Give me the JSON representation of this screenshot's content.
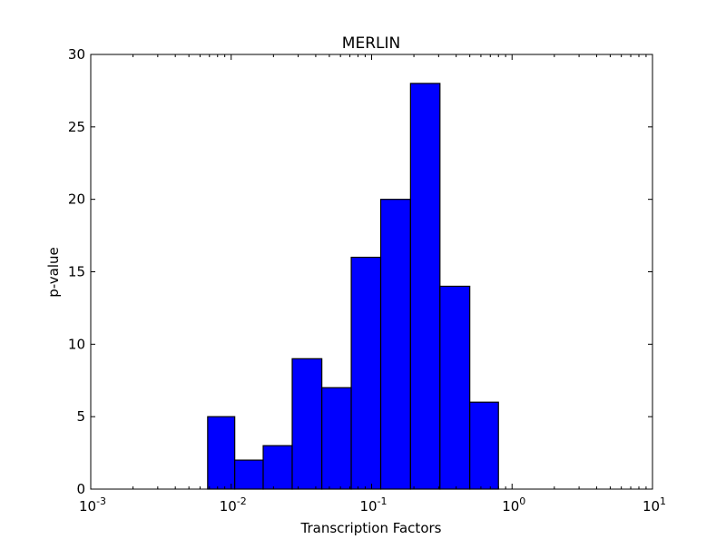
{
  "chart_data": {
    "type": "bar",
    "title": "MERLIN",
    "xlabel": "Transcription Factors",
    "ylabel": "p-value",
    "x_scale": "log",
    "xlim": [
      0.001,
      10
    ],
    "ylim": [
      0,
      30
    ],
    "x_ticks": [
      {
        "value": 0.001,
        "base": "10",
        "exp": "-3"
      },
      {
        "value": 0.01,
        "base": "10",
        "exp": "-2"
      },
      {
        "value": 0.1,
        "base": "10",
        "exp": "-1"
      },
      {
        "value": 1,
        "base": "10",
        "exp": "0"
      },
      {
        "value": 10,
        "base": "10",
        "exp": "1"
      }
    ],
    "y_ticks": [
      0,
      5,
      10,
      15,
      20,
      25,
      30
    ],
    "bins": [
      {
        "x0": 0.0068,
        "x1": 0.0106,
        "value": 5
      },
      {
        "x0": 0.0106,
        "x1": 0.0169,
        "value": 2
      },
      {
        "x0": 0.0169,
        "x1": 0.0272,
        "value": 3
      },
      {
        "x0": 0.0272,
        "x1": 0.0442,
        "value": 9
      },
      {
        "x0": 0.0442,
        "x1": 0.0716,
        "value": 7
      },
      {
        "x0": 0.0716,
        "x1": 0.1161,
        "value": 16
      },
      {
        "x0": 0.1161,
        "x1": 0.1892,
        "value": 20
      },
      {
        "x0": 0.1892,
        "x1": 0.3066,
        "value": 28
      },
      {
        "x0": 0.3066,
        "x1": 0.5,
        "value": 14
      },
      {
        "x0": 0.5,
        "x1": 0.8,
        "value": 6
      }
    ],
    "baseline_x0": 0.0016,
    "grid": false,
    "colors": {
      "bar_fill": "#0000ff",
      "bar_edge": "#000000",
      "axes": "#000000",
      "background": "#ffffff"
    }
  }
}
